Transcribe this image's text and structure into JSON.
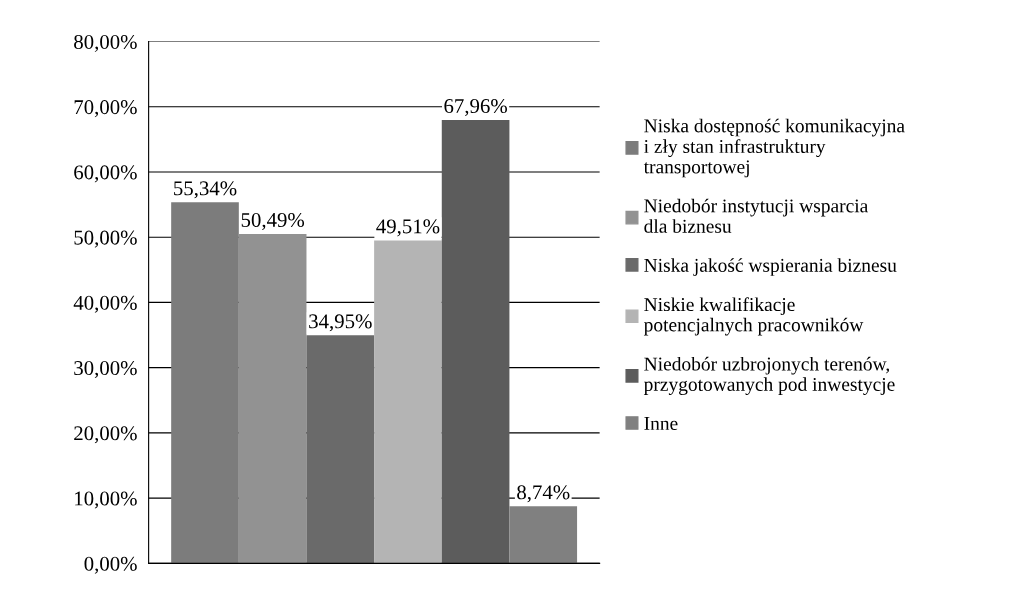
{
  "chart_data": {
    "type": "bar",
    "categories": [
      null
    ],
    "series": [
      {
        "name": "Niska dostępność komunikacyjna i zły stan infrastruktury transportowej",
        "color": "#7c7c7c",
        "values": [
          55.34
        ],
        "value_labels": [
          "55,34%"
        ]
      },
      {
        "name": "Niedobór instytucji wsparcia dla biznesu",
        "color": "#929292",
        "values": [
          50.49
        ],
        "value_labels": [
          "50,49%"
        ]
      },
      {
        "name": "Niska jakość wspierania biznesu",
        "color": "#6a6a6a",
        "values": [
          34.95
        ],
        "value_labels": [
          "34,95%"
        ]
      },
      {
        "name": "Niskie kwalifikacje potencjalnych pracowników",
        "color": "#b4b4b4",
        "values": [
          49.51
        ],
        "value_labels": [
          "49,51%"
        ]
      },
      {
        "name": "Niedobór uzbrojonych terenów, przygotowanych pod inwestycje",
        "color": "#5c5c5c",
        "values": [
          67.96
        ],
        "value_labels": [
          "67,96%"
        ]
      },
      {
        "name": "Inne",
        "color": "#808080",
        "values": [
          8.74
        ],
        "value_labels": [
          "8,74%"
        ]
      }
    ],
    "ylim": [
      0,
      80
    ],
    "yticks": [
      {
        "value": 0,
        "label": "0,00%"
      },
      {
        "value": 10,
        "label": "10,00%"
      },
      {
        "value": 20,
        "label": "20,00%"
      },
      {
        "value": 30,
        "label": "30,00%"
      },
      {
        "value": 40,
        "label": "40,00%"
      },
      {
        "value": 50,
        "label": "50,00%"
      },
      {
        "value": 60,
        "label": "60,00%"
      },
      {
        "value": 70,
        "label": "70,00%"
      },
      {
        "value": 80,
        "label": "80,00%"
      }
    ],
    "grid": "y",
    "legend": "right"
  }
}
